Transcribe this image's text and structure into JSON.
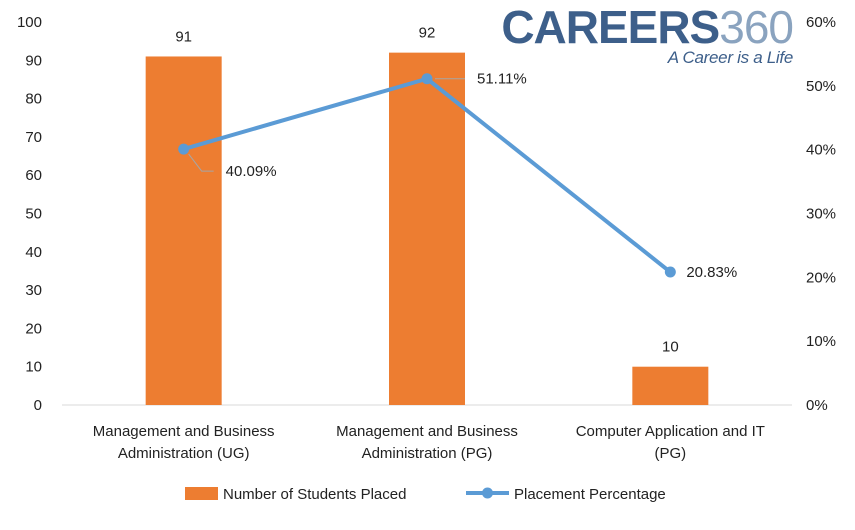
{
  "chart_data": {
    "type": "bar",
    "categories": [
      [
        "Management and Business",
        "Administration (UG)"
      ],
      [
        "Management and Business",
        "Administration (PG)"
      ],
      [
        "Computer Application and IT",
        "(PG)"
      ]
    ],
    "series": [
      {
        "name": "Number of Students Placed",
        "type": "bar",
        "axis": "left",
        "values": [
          91,
          92,
          10
        ],
        "data_labels": [
          "91",
          "92",
          "10"
        ],
        "color": "#ed7d31"
      },
      {
        "name": "Placement Percentage",
        "type": "line",
        "axis": "right",
        "values": [
          40.09,
          51.11,
          20.83
        ],
        "data_labels": [
          "40.09%",
          "51.11%",
          "20.83%"
        ],
        "color": "#5b9bd5"
      }
    ],
    "left_axis": {
      "min": 0,
      "max": 100,
      "step": 10
    },
    "right_axis": {
      "min": 0,
      "max": 60,
      "step": 10,
      "suffix": "%"
    },
    "grid": false,
    "legend_position": "bottom"
  },
  "logo": {
    "part1": "CAREERS",
    "part2": "360",
    "tagline": "A Career is a Life"
  }
}
